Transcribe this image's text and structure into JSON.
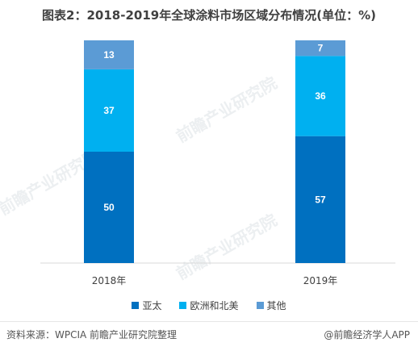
{
  "title": "图表2：2018-2019年全球涂料市场区域分布情况(单位：%)",
  "watermark": "前瞻产业研究院",
  "source": "资料来源：WPCIA 前瞻产业研究院整理",
  "brand": "@前瞻经济学人APP",
  "colors": {
    "亚太": "#0070c0",
    "欧洲和北美": "#00b0f0",
    "其他": "#5b9bd5"
  },
  "chart_data": {
    "type": "bar",
    "stacked": true,
    "categories": [
      "2018年",
      "2019年"
    ],
    "series": [
      {
        "name": "亚太",
        "values": [
          50,
          57
        ]
      },
      {
        "name": "欧洲和北美",
        "values": [
          37,
          36
        ]
      },
      {
        "name": "其他",
        "values": [
          13,
          7
        ]
      }
    ],
    "ylim": [
      0,
      100
    ],
    "grid": false,
    "legend": "bottom"
  }
}
